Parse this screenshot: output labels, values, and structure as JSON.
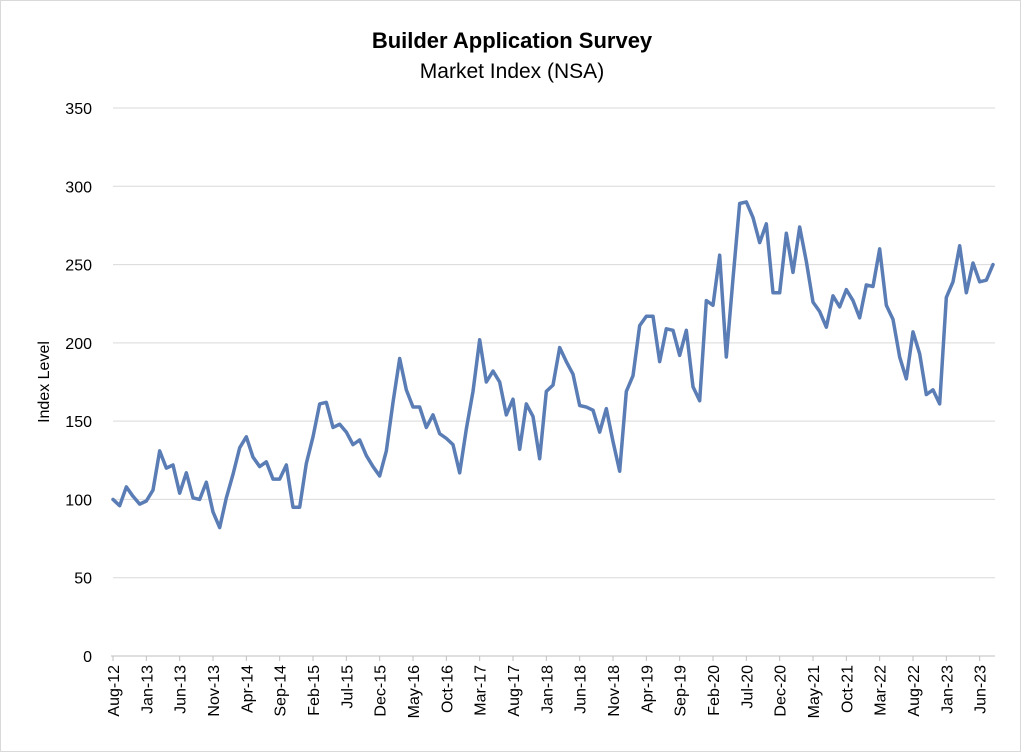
{
  "chart_data": {
    "type": "line",
    "title": "Builder Application Survey",
    "subtitle": "Market Index (NSA)",
    "ylabel": "Index Level",
    "xlabel": "",
    "ylim": [
      0,
      350
    ],
    "yticks": [
      0,
      50,
      100,
      150,
      200,
      250,
      300,
      350
    ],
    "grid": true,
    "legend": "none",
    "line_color": "#5B7DB5",
    "x_tick_labels": [
      "Aug-12",
      "Jan-13",
      "Jun-13",
      "Nov-13",
      "Apr-14",
      "Sep-14",
      "Feb-15",
      "Jul-15",
      "Dec-15",
      "May-16",
      "Oct-16",
      "Mar-17",
      "Aug-17",
      "Jan-18",
      "Jun-18",
      "Nov-18",
      "Apr-19",
      "Sep-19",
      "Feb-20",
      "Jul-20",
      "Dec-20",
      "May-21",
      "Oct-21",
      "Mar-22",
      "Aug-22",
      "Jan-23",
      "Jun-23"
    ],
    "series": [
      {
        "values": [
          100,
          96,
          108,
          102,
          97,
          99,
          106,
          131,
          120,
          122,
          104,
          117,
          101,
          100,
          111,
          92,
          82,
          101,
          116,
          133,
          140,
          127,
          121,
          124,
          113,
          113,
          122,
          95,
          95,
          123,
          140,
          161,
          162,
          146,
          148,
          143,
          135,
          138,
          128,
          121,
          115,
          131,
          162,
          190,
          170,
          159,
          159,
          146,
          154,
          142,
          139,
          135,
          117,
          145,
          169,
          202,
          175,
          182,
          175,
          154,
          164,
          132,
          161,
          153,
          126,
          169,
          173,
          197,
          188,
          180,
          160,
          159,
          157,
          143,
          158,
          137,
          118,
          169,
          179,
          211,
          217,
          217,
          188,
          209,
          208,
          192,
          208,
          172,
          163,
          227,
          224,
          256,
          191,
          241,
          289,
          290,
          280,
          264,
          276,
          232,
          232,
          270,
          245,
          274,
          252,
          226,
          220,
          210,
          230,
          223,
          234,
          227,
          216,
          237,
          236,
          260,
          224,
          215,
          191,
          177,
          207,
          193,
          167,
          170,
          161,
          229,
          239,
          262,
          232,
          251,
          239,
          240,
          250
        ]
      }
    ]
  }
}
